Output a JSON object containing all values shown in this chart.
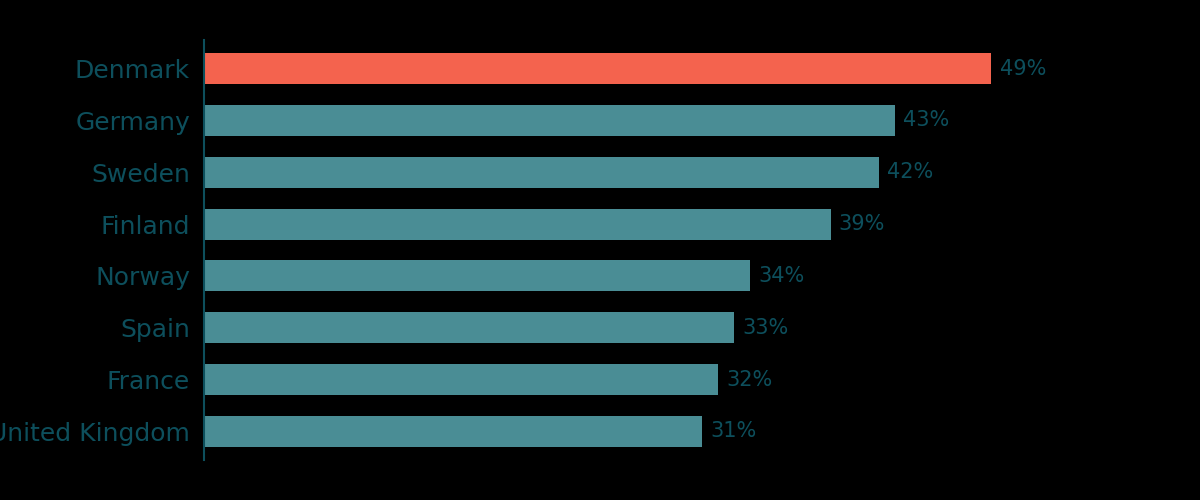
{
  "categories": [
    "Denmark",
    "Germany",
    "Sweden",
    "Finland",
    "Norway",
    "Spain",
    "France",
    "United Kingdom"
  ],
  "values": [
    49,
    43,
    42,
    39,
    34,
    33,
    32,
    31
  ],
  "bar_colors": [
    "#F4634E",
    "#4A8D95",
    "#4A8D95",
    "#4A8D95",
    "#4A8D95",
    "#4A8D95",
    "#4A8D95",
    "#4A8D95"
  ],
  "label_color": "#0D4F5C",
  "ytick_color": "#0D4F5C",
  "background_color": "#000000",
  "bar_label_fontsize": 15,
  "ytick_fontsize": 18,
  "xlim": [
    0,
    56
  ],
  "bar_height": 0.6,
  "spine_color": "#0D4F5C"
}
